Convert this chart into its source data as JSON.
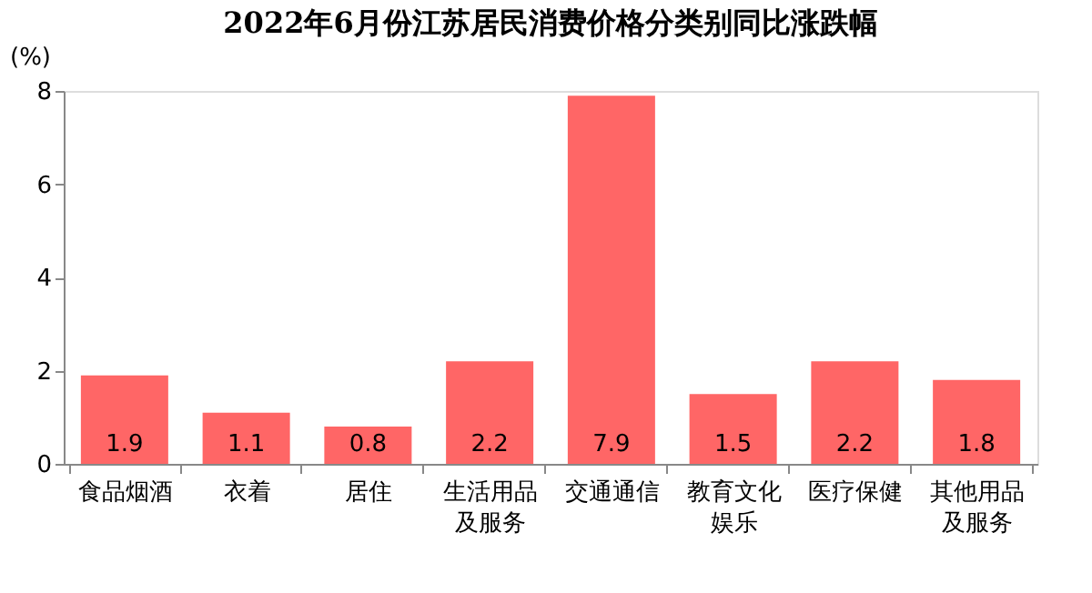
{
  "chart_data": {
    "type": "bar",
    "title": "2022年6月份江苏居民消费价格分类别同比涨跌幅",
    "ylabel": "(%)",
    "categories": [
      "食品烟酒",
      "衣着",
      "居住",
      "生活用品及服务",
      "交通通信",
      "教育文化娱乐",
      "医疗保健",
      "其他用品及服务"
    ],
    "values": [
      1.9,
      1.1,
      0.8,
      2.2,
      7.9,
      1.5,
      2.2,
      1.8
    ],
    "color": "#ff6666",
    "ylim": [
      0,
      8
    ],
    "yticks": [
      0,
      2,
      4,
      6,
      8
    ],
    "grid": false,
    "data_labels": true
  }
}
